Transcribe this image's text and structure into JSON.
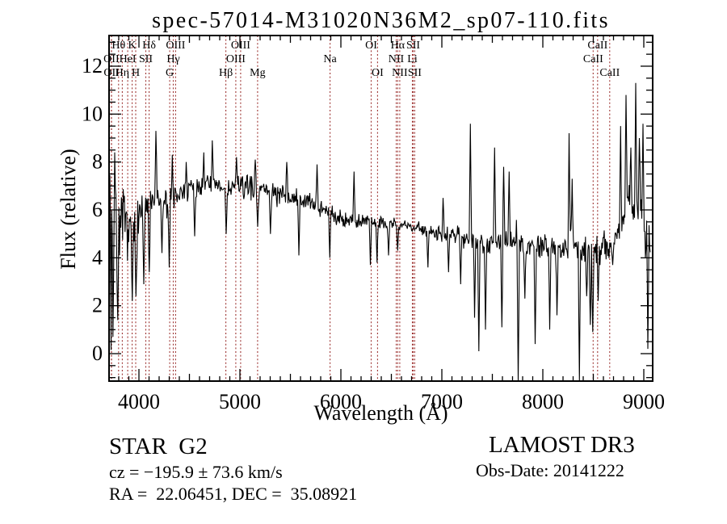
{
  "title": "spec-57014-M31020N36M2_sp07-110.fits",
  "footer": {
    "class_label": "STAR  G2",
    "survey": "LAMOST DR3",
    "cz": "cz = −195.9 ± 73.6 km/s",
    "obs_date": "Obs-Date: 20141222",
    "radec": "RA =  22.06451, DEC =  35.08921"
  },
  "chart_data": {
    "type": "line",
    "title": "spec-57014-M31020N36M2_sp07-110.fits",
    "xlabel": "Wavelength (Å)",
    "ylabel": "Flux (relative)",
    "xlim": [
      3704,
      9088
    ],
    "ylim": [
      -1.146,
      13.28
    ],
    "xticks": [
      4000,
      5000,
      6000,
      7000,
      8000,
      9000
    ],
    "yticks": [
      0,
      2,
      4,
      6,
      8,
      10,
      12
    ],
    "x_minor_step": 100,
    "x_semi_step": 500,
    "y_minor_step": 0.5,
    "grid": false,
    "legend": "none",
    "line_color": "#000000",
    "marker_line_color": "#9e3533",
    "noise_seed": 7,
    "sample_step_angstrom": 6,
    "spectral_lines": [
      {
        "label": "OII",
        "wavelength": 3727,
        "row": 2
      },
      {
        "label": "OII",
        "wavelength": 3729,
        "row": 3
      },
      {
        "label": "Hθ",
        "wavelength": 3798,
        "row": 1
      },
      {
        "label": "Hη",
        "wavelength": 3835,
        "row": 3
      },
      {
        "label": "HeI",
        "wavelength": 3889,
        "row": 2
      },
      {
        "label": "K",
        "wavelength": 3933,
        "row": 1
      },
      {
        "label": "H",
        "wavelength": 3968,
        "row": 3
      },
      {
        "label": "SII",
        "wavelength": 4068,
        "row": 2
      },
      {
        "label": "Hδ",
        "wavelength": 4101,
        "row": 1
      },
      {
        "label": "G",
        "wavelength": 4305,
        "row": 3
      },
      {
        "label": "Hγ",
        "wavelength": 4340,
        "row": 2
      },
      {
        "label": "OIII",
        "wavelength": 4363,
        "row": 1
      },
      {
        "label": "Hβ",
        "wavelength": 4861,
        "row": 3
      },
      {
        "label": "OIII",
        "wavelength": 4959,
        "row": 2
      },
      {
        "label": "OIII",
        "wavelength": 5007,
        "row": 1
      },
      {
        "label": "Mg",
        "wavelength": 5175,
        "row": 3
      },
      {
        "label": "Na",
        "wavelength": 5893,
        "row": 2
      },
      {
        "label": "OI",
        "wavelength": 6300,
        "row": 1
      },
      {
        "label": "OI",
        "wavelength": 6363,
        "row": 3
      },
      {
        "label": "NII",
        "wavelength": 6548,
        "row": 2
      },
      {
        "label": "Hα",
        "wavelength": 6563,
        "row": 1
      },
      {
        "label": "NII",
        "wavelength": 6583,
        "row": 3
      },
      {
        "label": "Li",
        "wavelength": 6708,
        "row": 2
      },
      {
        "label": "SII",
        "wavelength": 6716,
        "row": 1
      },
      {
        "label": "SII",
        "wavelength": 6731,
        "row": 3
      },
      {
        "label": "CaII",
        "wavelength": 8498,
        "row": 2
      },
      {
        "label": "CaII",
        "wavelength": 8542,
        "row": 1
      },
      {
        "label": "CaII",
        "wavelength": 8662,
        "row": 3
      }
    ],
    "continuum": [
      [
        3706,
        3.6
      ],
      [
        3740,
        4.6
      ],
      [
        3780,
        5.0
      ],
      [
        3830,
        5.4
      ],
      [
        3880,
        5.3
      ],
      [
        3930,
        5.0
      ],
      [
        3970,
        5.1
      ],
      [
        4020,
        5.9
      ],
      [
        4080,
        6.0
      ],
      [
        4150,
        6.3
      ],
      [
        4250,
        6.35
      ],
      [
        4320,
        6.2
      ],
      [
        4400,
        6.65
      ],
      [
        4500,
        6.8
      ],
      [
        4600,
        7.0
      ],
      [
        4700,
        7.05
      ],
      [
        4800,
        6.9
      ],
      [
        4870,
        6.85
      ],
      [
        4950,
        6.95
      ],
      [
        5050,
        7.0
      ],
      [
        5150,
        6.9
      ],
      [
        5250,
        6.85
      ],
      [
        5350,
        6.7
      ],
      [
        5450,
        6.6
      ],
      [
        5550,
        6.45
      ],
      [
        5650,
        6.35
      ],
      [
        5750,
        6.2
      ],
      [
        5850,
        6.0
      ],
      [
        5950,
        5.75
      ],
      [
        6050,
        5.6
      ],
      [
        6150,
        5.5
      ],
      [
        6250,
        5.45
      ],
      [
        6350,
        5.5
      ],
      [
        6450,
        5.5
      ],
      [
        6550,
        5.4
      ],
      [
        6650,
        5.35
      ],
      [
        6750,
        5.25
      ],
      [
        6850,
        5.15
      ],
      [
        6950,
        5.05
      ],
      [
        7050,
        5.0
      ],
      [
        7150,
        5.0
      ],
      [
        7250,
        4.9
      ],
      [
        7350,
        4.75
      ],
      [
        7450,
        4.65
      ],
      [
        7550,
        4.6
      ],
      [
        7650,
        4.7
      ],
      [
        7750,
        4.55
      ],
      [
        7850,
        4.5
      ],
      [
        7950,
        4.5
      ],
      [
        8050,
        4.45
      ],
      [
        8150,
        4.4
      ],
      [
        8250,
        4.55
      ],
      [
        8330,
        4.6
      ],
      [
        8420,
        4.3
      ],
      [
        8480,
        4.0
      ],
      [
        8530,
        4.3
      ],
      [
        8600,
        4.5
      ],
      [
        8680,
        4.6
      ],
      [
        8750,
        5.1
      ],
      [
        8800,
        5.6
      ],
      [
        8850,
        6.2
      ],
      [
        8900,
        6.3
      ],
      [
        8950,
        6.0
      ],
      [
        9000,
        5.7
      ],
      [
        9040,
        5.4
      ],
      [
        9064,
        4.4
      ]
    ],
    "noise_amplitude": [
      [
        3706,
        3.3
      ],
      [
        3750,
        2.9
      ],
      [
        3790,
        2.2
      ],
      [
        3830,
        1.6
      ],
      [
        3880,
        1.35
      ],
      [
        3930,
        1.25
      ],
      [
        3990,
        1.0
      ],
      [
        4060,
        0.85
      ],
      [
        4150,
        0.75
      ],
      [
        4300,
        0.7
      ],
      [
        4500,
        0.6
      ],
      [
        4800,
        0.55
      ],
      [
        5100,
        0.5
      ],
      [
        5400,
        0.45
      ],
      [
        5700,
        0.42
      ],
      [
        6000,
        0.38
      ],
      [
        6300,
        0.33
      ],
      [
        6600,
        0.3
      ],
      [
        6900,
        0.3
      ],
      [
        7100,
        0.33
      ],
      [
        7220,
        0.5
      ],
      [
        7300,
        0.65
      ],
      [
        7450,
        0.5
      ],
      [
        7600,
        0.5
      ],
      [
        7800,
        0.55
      ],
      [
        8000,
        0.5
      ],
      [
        8200,
        0.55
      ],
      [
        8350,
        0.7
      ],
      [
        8500,
        0.75
      ],
      [
        8650,
        0.6
      ],
      [
        8780,
        0.9
      ],
      [
        8900,
        1.1
      ],
      [
        9000,
        0.9
      ],
      [
        9064,
        0.8
      ]
    ],
    "spike_features": [
      [
        3716,
        10.3
      ],
      [
        3722,
        0.15
      ],
      [
        3736,
        9.2
      ],
      [
        3744,
        0.7
      ],
      [
        3762,
        8.4
      ],
      [
        3790,
        1.4
      ],
      [
        3934,
        2.2
      ],
      [
        3969,
        2.4
      ],
      [
        4046,
        2.9
      ],
      [
        4103,
        3.4
      ],
      [
        4168,
        9.3
      ],
      [
        4225,
        4.2
      ],
      [
        4302,
        3.6
      ],
      [
        4332,
        8.3
      ],
      [
        4470,
        8.0
      ],
      [
        4553,
        4.9
      ],
      [
        4640,
        8.4
      ],
      [
        4727,
        8.9
      ],
      [
        4862,
        5.0
      ],
      [
        4968,
        8.2
      ],
      [
        5152,
        8.1
      ],
      [
        5178,
        5.3
      ],
      [
        5300,
        5.0
      ],
      [
        5462,
        8.0
      ],
      [
        5582,
        4.1
      ],
      [
        5762,
        7.9
      ],
      [
        5892,
        4.0
      ],
      [
        6132,
        7.6
      ],
      [
        6290,
        3.7
      ],
      [
        6356,
        3.8
      ],
      [
        6470,
        4.1
      ],
      [
        6564,
        4.3
      ],
      [
        6862,
        3.6
      ],
      [
        7010,
        6.5
      ],
      [
        7066,
        3.4
      ],
      [
        7186,
        2.9
      ],
      [
        7282,
        9.6
      ],
      [
        7322,
        1.5
      ],
      [
        7368,
        0.1
      ],
      [
        7432,
        1.0
      ],
      [
        7522,
        8.6
      ],
      [
        7596,
        1.1
      ],
      [
        7612,
        7.8
      ],
      [
        7668,
        7.6
      ],
      [
        7758,
        -1.2
      ],
      [
        7822,
        2.3
      ],
      [
        7922,
        0.4
      ],
      [
        8066,
        1.0
      ],
      [
        8138,
        1.6
      ],
      [
        8262,
        9.2
      ],
      [
        8292,
        7.3
      ],
      [
        8360,
        -1.2
      ],
      [
        8432,
        2.4
      ],
      [
        8472,
        1.2
      ],
      [
        8496,
        0.9
      ],
      [
        8546,
        2.2
      ],
      [
        8692,
        3.7
      ],
      [
        8770,
        9.5
      ],
      [
        8824,
        10.8
      ],
      [
        8872,
        8.6
      ],
      [
        8920,
        11.3
      ],
      [
        8956,
        9.0
      ],
      [
        8990,
        9.6
      ],
      [
        9014,
        4.0
      ],
      [
        9042,
        0.2
      ]
    ]
  }
}
